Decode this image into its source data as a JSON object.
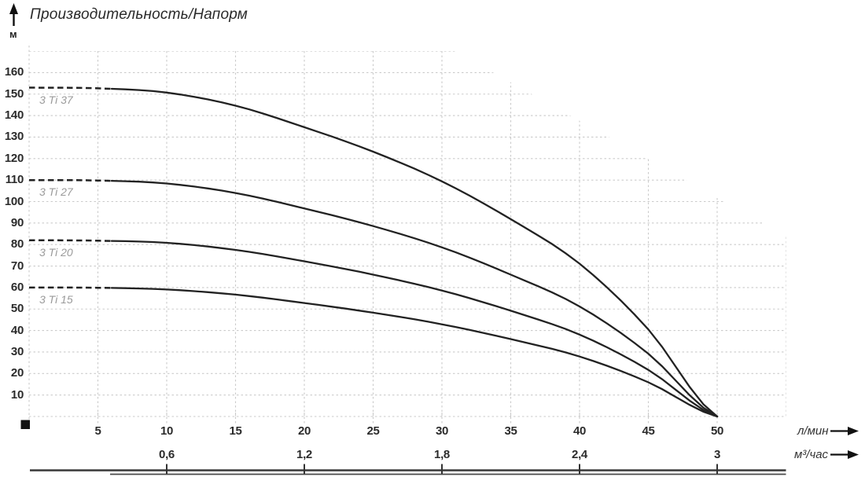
{
  "title": "Производительность/Напорм",
  "y_axis": {
    "unit_label": "м",
    "ticks": [
      160,
      150,
      140,
      130,
      120,
      110,
      100,
      90,
      80,
      70,
      60,
      50,
      40,
      30,
      20,
      10
    ]
  },
  "x_axis_primary": {
    "unit_label": "л/мин",
    "ticks": [
      5,
      10,
      15,
      20,
      25,
      30,
      35,
      40,
      45,
      50
    ]
  },
  "x_axis_secondary": {
    "unit_label": "м³/час",
    "tick_labels": [
      "0,6",
      "1,2",
      "1,8",
      "2,4",
      "3"
    ],
    "tick_positions_lmin": [
      10,
      20,
      30,
      40,
      50
    ]
  },
  "chart_data": {
    "type": "line",
    "title": "Производительность/Напорм",
    "ylabel": "м",
    "xlabel_primary": "л/мин",
    "xlabel_secondary": "м³/час",
    "x_range_lmin": [
      0,
      55
    ],
    "y_range_m": [
      0,
      170
    ],
    "grid": "dashed, 5 л/мин × 10 м cells, clipped diagonally above the top curve",
    "curve_style": "dashed from 0 to ~6.5 л/мин, solid to 50 л/мин",
    "flow_points_lmin": [
      0,
      5,
      10,
      15,
      20,
      25,
      30,
      35,
      40,
      45,
      50
    ],
    "series": [
      {
        "name": "3 Ti 37",
        "shutoff_head_m": 153,
        "max_flow_lmin": 50,
        "head_m": [
          153,
          152.7,
          150.7,
          144.6,
          134.6,
          123.2,
          109.4,
          91.8,
          71.1,
          40.5,
          0
        ]
      },
      {
        "name": "3 Ti 27",
        "shutoff_head_m": 110,
        "max_flow_lmin": 50,
        "head_m": [
          110,
          109.8,
          108.4,
          104.0,
          96.8,
          88.6,
          78.7,
          66.0,
          51.2,
          29.2,
          0
        ]
      },
      {
        "name": "3 Ti 20",
        "shutoff_head_m": 82,
        "max_flow_lmin": 50,
        "head_m": [
          82,
          81.8,
          80.8,
          77.5,
          72.2,
          66.0,
          58.6,
          49.2,
          38.1,
          21.7,
          0
        ]
      },
      {
        "name": "3 Ti 15",
        "shutoff_head_m": 60,
        "max_flow_lmin": 50,
        "head_m": [
          60,
          59.9,
          59.1,
          56.7,
          52.8,
          48.3,
          42.9,
          36.0,
          27.9,
          15.9,
          0
        ]
      }
    ]
  },
  "colors": {
    "curve": "#222222",
    "grid": "#cbcbcb",
    "axis_text": "#2b2b2b",
    "series_label": "#9a9a9a",
    "ruler": "#383838",
    "marker": "#111111"
  }
}
